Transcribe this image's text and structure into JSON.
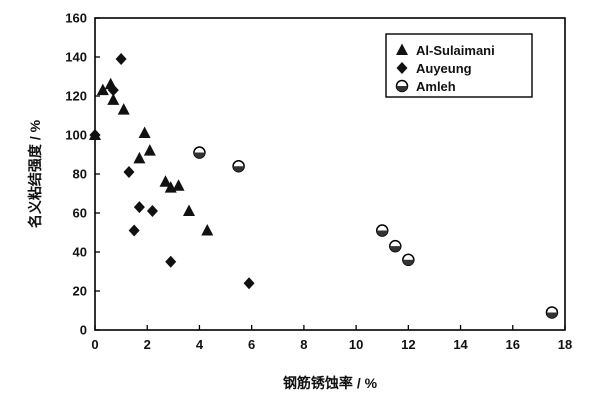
{
  "chart_data": {
    "type": "scatter",
    "title": "",
    "xlabel": "钢筋锈蚀率 / %",
    "ylabel": "名义粘结强度 / %",
    "xlim": [
      0,
      18
    ],
    "ylim": [
      0,
      160
    ],
    "xticks": [
      0,
      2,
      4,
      6,
      8,
      10,
      12,
      14,
      16,
      18
    ],
    "yticks": [
      0,
      20,
      40,
      60,
      80,
      100,
      120,
      140,
      160
    ],
    "grid": false,
    "legend_position": "top-right",
    "series": [
      {
        "name": "Al-Sulaimani",
        "marker": "triangle",
        "points": [
          [
            0.0,
            100
          ],
          [
            0.3,
            123
          ],
          [
            0.6,
            126
          ],
          [
            0.7,
            118
          ],
          [
            1.1,
            113
          ],
          [
            1.7,
            88
          ],
          [
            1.9,
            101
          ],
          [
            2.1,
            92
          ],
          [
            2.7,
            76
          ],
          [
            2.9,
            73
          ],
          [
            3.2,
            74
          ],
          [
            3.6,
            61
          ],
          [
            4.3,
            51
          ]
        ]
      },
      {
        "name": "Auyeung",
        "marker": "diamond",
        "points": [
          [
            0.0,
            100
          ],
          [
            0.7,
            123
          ],
          [
            1.0,
            139
          ],
          [
            1.3,
            81
          ],
          [
            1.5,
            51
          ],
          [
            1.7,
            63
          ],
          [
            2.2,
            61
          ],
          [
            2.9,
            35
          ],
          [
            5.9,
            24
          ]
        ]
      },
      {
        "name": "Amleh",
        "marker": "circle",
        "points": [
          [
            4.0,
            91
          ],
          [
            5.5,
            84
          ],
          [
            11.0,
            51
          ],
          [
            11.5,
            43
          ],
          [
            12.0,
            36
          ],
          [
            17.5,
            9
          ]
        ]
      }
    ]
  }
}
